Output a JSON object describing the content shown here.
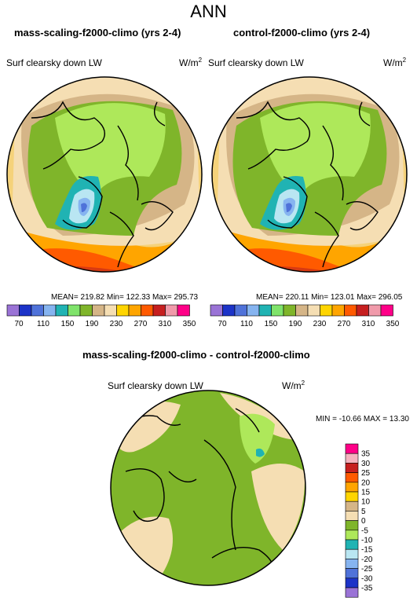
{
  "figure": {
    "title": "ANN",
    "diff_title": "mass-scaling-f2000-climo - control-f2000-climo"
  },
  "panels": [
    {
      "title": "mass-scaling-f2000-climo (yrs 2-4)",
      "field": "Surf clearsky down LW",
      "units": "W/m",
      "units_sup": "2",
      "stats": "MEAN= 219.82  Min= 122.33  Max= 295.73"
    },
    {
      "title": "control-f2000-climo (yrs 2-4)",
      "field": "Surf clearsky down LW",
      "units": "W/m",
      "units_sup": "2",
      "stats": "MEAN= 220.11  Min= 123.01  Max= 296.05"
    }
  ],
  "diff_panel": {
    "field": "Surf clearsky down LW",
    "units": "W/m",
    "units_sup": "2",
    "minmax": "MIN = -10.66 MAX =  13.30"
  },
  "colorbar_main": {
    "colors": [
      "#9a73d6",
      "#1c33c8",
      "#4f72d9",
      "#86b4f0",
      "#20b3b3",
      "#7fe36b",
      "#7fb52a",
      "#d5b587",
      "#f5deb3",
      "#ffd500",
      "#ffa500",
      "#ff5a00",
      "#c61f1f",
      "#f09aaa",
      "#ff0088"
    ],
    "labels": [
      "70",
      "110",
      "150",
      "190",
      "230",
      "270",
      "310",
      "350"
    ],
    "label_positions": [
      1,
      3,
      5,
      7,
      9,
      11,
      13,
      15
    ]
  },
  "colorbar_diff": {
    "colors": [
      "#ff0088",
      "#f5b3bf",
      "#c61f1f",
      "#ff5a00",
      "#ffa500",
      "#ffd500",
      "#d5b587",
      "#f5deb3",
      "#7fb52a",
      "#aee85a",
      "#20b3b3",
      "#b9e6f2",
      "#86b4f0",
      "#4f72d9",
      "#1c33c8",
      "#9a73d6"
    ],
    "labels": [
      "35",
      "30",
      "25",
      "20",
      "15",
      "10",
      "5",
      "0",
      "-5",
      "-10",
      "-15",
      "-20",
      "-25",
      "-30",
      "-35"
    ]
  }
}
